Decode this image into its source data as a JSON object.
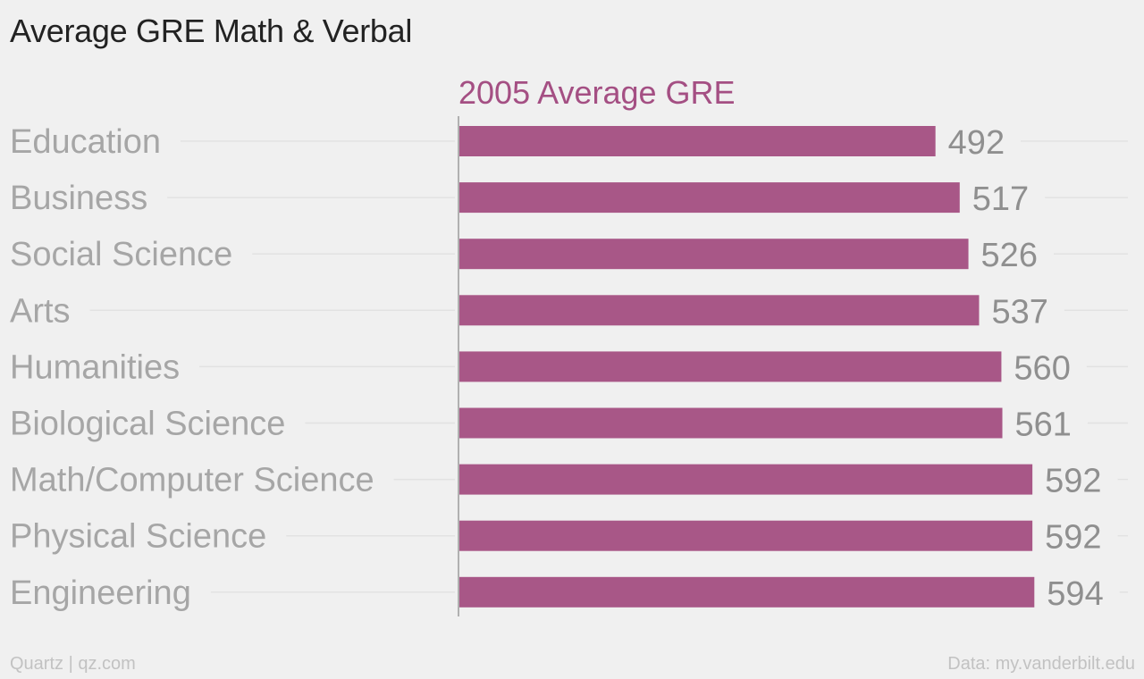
{
  "title": "Average GRE Math & Verbal",
  "chart_data": {
    "type": "bar",
    "orientation": "horizontal",
    "categories": [
      "Education",
      "Business",
      "Social Science",
      "Arts",
      "Humanities",
      "Biological Science",
      "Math/Computer Science",
      "Physical Science",
      "Engineering"
    ],
    "series": [
      {
        "name": "2005 Average GRE",
        "values": [
          492,
          517,
          526,
          537,
          560,
          561,
          592,
          592,
          594
        ]
      }
    ],
    "data_labels": [
      "492",
      "517",
      "526",
      "537",
      "560",
      "561",
      "592",
      "592",
      "594"
    ],
    "xlim": [
      0,
      610
    ],
    "grid": true,
    "legend": "top"
  },
  "colors": {
    "bar": "#a85787",
    "series_label": "#a44f83",
    "axis_text": "#a6a6a6",
    "value_text": "#8f8f8f",
    "grid": "#e2e2e2",
    "baseline": "#b0b0b0"
  },
  "footer": {
    "left": "Quartz | qz.com",
    "right": "Data: my.vanderbilt.edu"
  }
}
